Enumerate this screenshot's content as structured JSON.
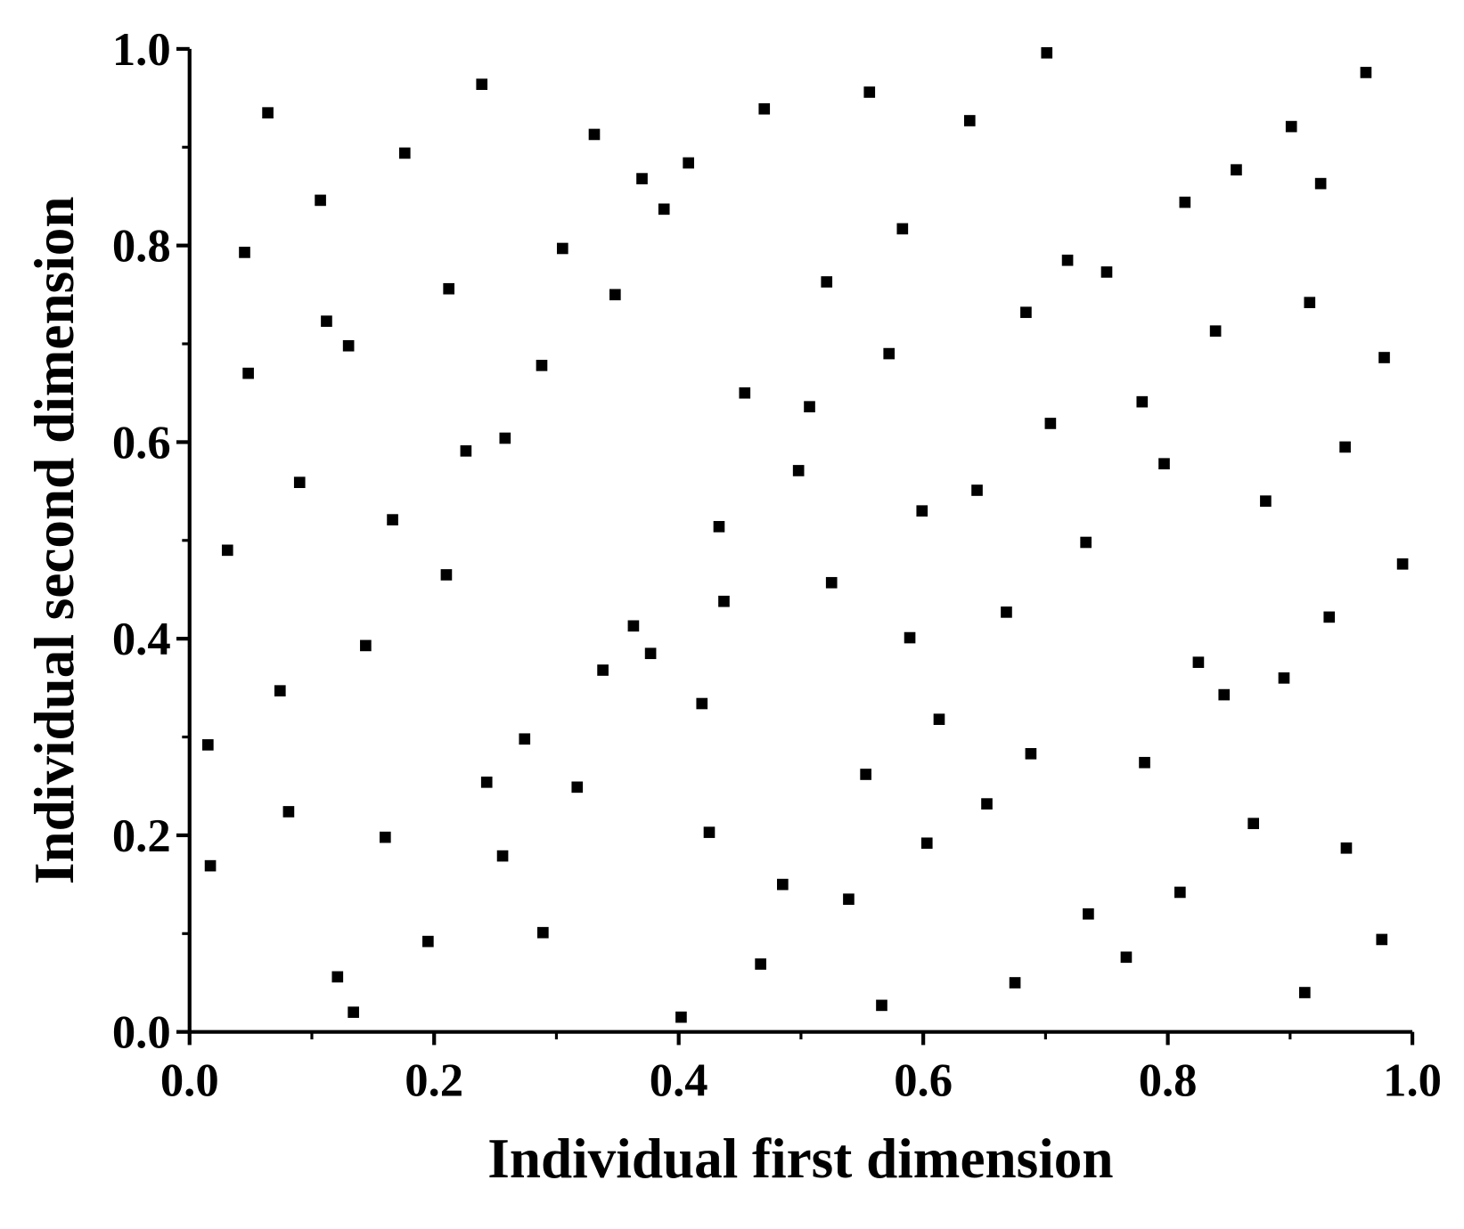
{
  "chart_data": {
    "type": "scatter",
    "xlabel": "Individual first dimension",
    "ylabel": "Individual second dimension",
    "color": "#000000",
    "xlim": [
      0,
      1
    ],
    "ylim": [
      0,
      1
    ],
    "xticks": [
      {
        "value": 0,
        "label": "0.0"
      },
      0.2,
      0.4,
      0.6,
      0.8,
      {
        "value": 1,
        "label": "1.0"
      }
    ],
    "yticks": [
      {
        "value": 0,
        "label": "0.0"
      },
      0.2,
      0.4,
      0.6,
      0.8,
      {
        "value": 1,
        "label": "1.0"
      }
    ],
    "xminorticks": [
      0.1,
      0.3,
      0.5,
      0.7,
      0.9
    ],
    "yminorticks": [
      0.1,
      0.3,
      0.5,
      0.7,
      0.9
    ],
    "x": [
      0.015,
      0.017,
      0.031,
      0.045,
      0.048,
      0.064,
      0.074,
      0.081,
      0.09,
      0.107,
      0.112,
      0.121,
      0.13,
      0.134,
      0.144,
      0.16,
      0.166,
      0.176,
      0.195,
      0.21,
      0.212,
      0.226,
      0.239,
      0.243,
      0.256,
      0.258,
      0.274,
      0.288,
      0.289,
      0.305,
      0.317,
      0.331,
      0.338,
      0.348,
      0.363,
      0.37,
      0.377,
      0.388,
      0.402,
      0.408,
      0.419,
      0.425,
      0.433,
      0.437,
      0.454,
      0.467,
      0.47,
      0.485,
      0.498,
      0.507,
      0.521,
      0.525,
      0.539,
      0.553,
      0.556,
      0.566,
      0.572,
      0.583,
      0.589,
      0.599,
      0.603,
      0.613,
      0.638,
      0.644,
      0.652,
      0.668,
      0.675,
      0.684,
      0.688,
      0.701,
      0.704,
      0.718,
      0.733,
      0.735,
      0.75,
      0.766,
      0.779,
      0.781,
      0.797,
      0.81,
      0.814,
      0.825,
      0.839,
      0.846,
      0.856,
      0.87,
      0.88,
      0.895,
      0.901,
      0.912,
      0.916,
      0.925,
      0.932,
      0.945,
      0.946,
      0.962,
      0.975,
      0.977,
      0.992
    ],
    "values": [
      0.292,
      0.169,
      0.49,
      0.793,
      0.67,
      0.935,
      0.347,
      0.224,
      0.559,
      0.846,
      0.723,
      0.056,
      0.698,
      0.02,
      0.393,
      0.198,
      0.521,
      0.894,
      0.092,
      0.465,
      0.756,
      0.591,
      0.964,
      0.254,
      0.179,
      0.604,
      0.298,
      0.678,
      0.101,
      0.797,
      0.249,
      0.913,
      0.368,
      0.75,
      0.413,
      0.868,
      0.385,
      0.837,
      0.015,
      0.884,
      0.334,
      0.203,
      0.514,
      0.438,
      0.65,
      0.069,
      0.939,
      0.15,
      0.571,
      0.636,
      0.763,
      0.457,
      0.135,
      0.262,
      0.956,
      0.027,
      0.69,
      0.817,
      0.401,
      0.53,
      0.192,
      0.318,
      0.927,
      0.551,
      0.232,
      0.427,
      0.05,
      0.732,
      0.283,
      0.996,
      0.619,
      0.785,
      0.498,
      0.12,
      0.773,
      0.076,
      0.641,
      0.274,
      0.578,
      0.142,
      0.844,
      0.376,
      0.713,
      0.343,
      0.877,
      0.212,
      0.54,
      0.36,
      0.921,
      0.04,
      0.742,
      0.863,
      0.422,
      0.595,
      0.187,
      0.976,
      0.094,
      0.686,
      0.476
    ]
  }
}
